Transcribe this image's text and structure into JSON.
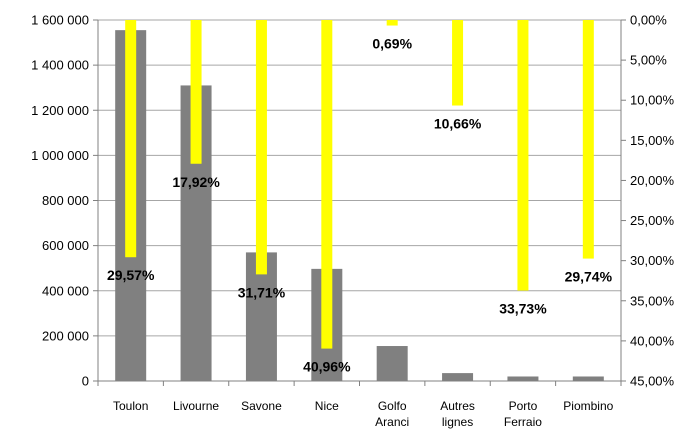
{
  "chart_data": {
    "type": "bar",
    "categories": [
      [
        "Toulon"
      ],
      [
        "Livourne"
      ],
      [
        "Savone"
      ],
      [
        "Nice"
      ],
      [
        "Golfo",
        "Aranci"
      ],
      [
        "Autres",
        "lignes"
      ],
      [
        "Porto",
        "Ferraio"
      ],
      [
        "Piombino"
      ]
    ],
    "series": [
      {
        "axis": "left",
        "color": "#808080",
        "values": [
          1555000,
          1310000,
          570000,
          497000,
          155000,
          35000,
          20000,
          20000
        ]
      },
      {
        "axis": "right",
        "inverted_axis": true,
        "color": "#ffff00",
        "values": [
          29.57,
          17.92,
          31.71,
          40.96,
          0.69,
          10.66,
          33.73,
          29.74
        ],
        "labels": [
          "29,57%",
          "17,92%",
          "31,71%",
          "40,96%",
          "0,69%",
          "10,66%",
          "33,73%",
          "29,74%"
        ]
      }
    ],
    "y_left": {
      "ylim": [
        0,
        1600000
      ],
      "ticks": [
        0,
        200000,
        400000,
        600000,
        800000,
        1000000,
        1200000,
        1400000,
        1600000
      ],
      "tick_labels": [
        "0",
        "200 000",
        "400 000",
        "600 000",
        "800 000",
        "1 000 000",
        "1 200 000",
        "1 400 000",
        "1 600 000"
      ]
    },
    "y_right": {
      "ylim": [
        0,
        45
      ],
      "inverted": true,
      "ticks": [
        0,
        5,
        10,
        15,
        20,
        25,
        30,
        35,
        40,
        45
      ],
      "tick_labels": [
        "0,00%",
        "5,00%",
        "10,00%",
        "15,00%",
        "20,00%",
        "25,00%",
        "30,00%",
        "35,00%",
        "40,00%",
        "45,00%"
      ]
    },
    "grid": true,
    "legend": "none"
  }
}
